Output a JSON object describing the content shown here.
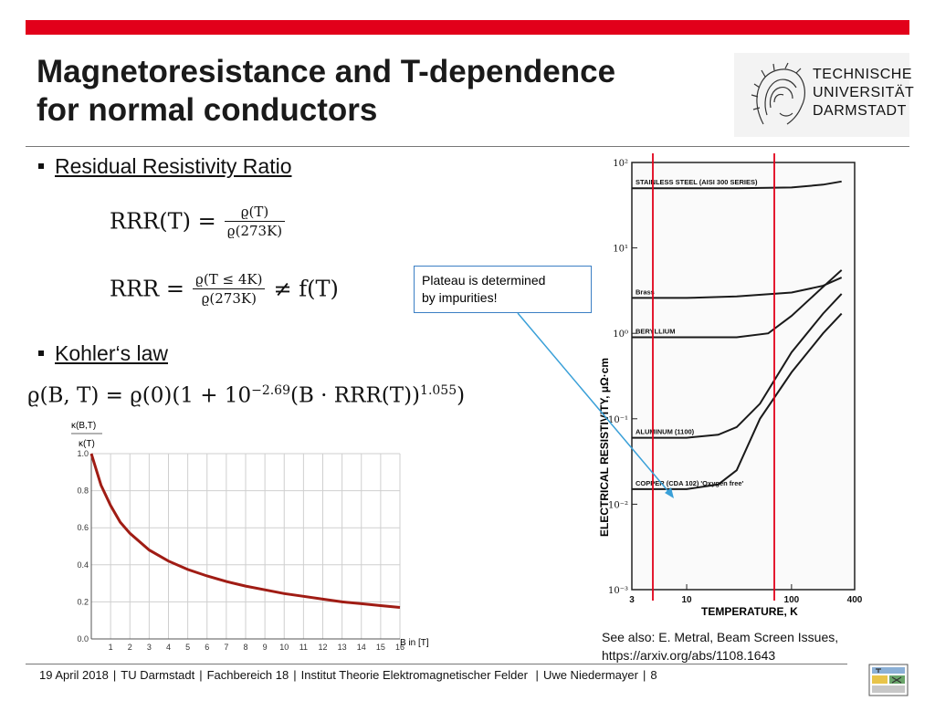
{
  "slide": {
    "title_line1": "Magnetoresistance and T-dependence",
    "title_line2": "for normal conductors",
    "accent_color": "#e2001a",
    "logo": {
      "line1": "TECHNISCHE",
      "line2": "UNIVERSITÄT",
      "line3": "DARMSTADT"
    },
    "bullet1": "Residual Resistivity Ratio",
    "bullet2": "Kohler‘s law",
    "eq1": {
      "lhs": "RRR(T) =",
      "num": "ϱ(T)",
      "den": "ϱ(273K)"
    },
    "eq2": {
      "lhs": "RRR =",
      "num": "ϱ(T ≤ 4K)",
      "den": "ϱ(273K)",
      "rhs": "≠ f(T)"
    },
    "eq3": {
      "text": "ϱ(B, T) = ϱ(0)(1 + 10",
      "exp": "−2.69",
      "mid": "(B · RRR(T))",
      "exp2": "1.055",
      "end": ")"
    },
    "callout": {
      "line1": "Plateau is determined",
      "line2": "by impurities!"
    },
    "seealso": {
      "line1": "See also: E. Metral, Beam Screen Issues,",
      "line2": "https://arxiv.org/abs/1108.1643"
    },
    "footer": {
      "date": "19 April 2018",
      "org": "TU Darmstadt",
      "dept": "Fachbereich 18",
      "inst": "Institut Theorie Elektromagnetischer Felder",
      "author": "Uwe Niedermayer",
      "page": "8"
    }
  },
  "chart_data": [
    {
      "type": "line",
      "ylabel_top": "κ(B,T)",
      "ylabel_bottom": "κ(T)",
      "xlabel": "B in [T]",
      "xlim": [
        0,
        16
      ],
      "ylim": [
        0,
        1
      ],
      "x_ticks": [
        "1",
        "2",
        "3",
        "4",
        "5",
        "6",
        "7",
        "8",
        "9",
        "10",
        "11",
        "12",
        "13",
        "14",
        "15",
        "16"
      ],
      "y_ticks": [
        "0.0",
        "0.2",
        "0.4",
        "0.6",
        "0.8",
        "1.0"
      ],
      "grid": true,
      "series_color": "#a01c14",
      "x": [
        0,
        0.5,
        1,
        1.5,
        2,
        3,
        4,
        5,
        6,
        7,
        8,
        9,
        10,
        11,
        12,
        13,
        14,
        15,
        16
      ],
      "y": [
        1.0,
        0.83,
        0.72,
        0.63,
        0.57,
        0.48,
        0.42,
        0.375,
        0.34,
        0.31,
        0.285,
        0.265,
        0.245,
        0.23,
        0.215,
        0.2,
        0.19,
        0.18,
        0.17
      ]
    },
    {
      "type": "line",
      "ylabel": "ELECTRICAL RESISTIVITY, μΩ·cm",
      "xlabel": "TEMPERATURE, K",
      "x_tick_labels": [
        "3",
        "10",
        "100",
        "400"
      ],
      "y_tick_labels": [
        "10²",
        "10¹",
        "10⁰",
        "10⁻¹",
        "10⁻²",
        "10⁻³"
      ],
      "log_x": true,
      "log_y": true,
      "xlim": [
        3,
        400
      ],
      "ylim": [
        0.001,
        100
      ],
      "marker_lines_color": "#e2001a",
      "series": [
        {
          "name": "STAINLESS STEEL (AISI 300 SERIES)",
          "x": [
            3,
            10,
            30,
            100,
            200,
            300
          ],
          "y": [
            50,
            50,
            50,
            51,
            55,
            60
          ]
        },
        {
          "name": "Brass",
          "x": [
            3,
            10,
            30,
            100,
            200,
            300
          ],
          "y": [
            2.6,
            2.6,
            2.7,
            3.0,
            3.6,
            4.5
          ]
        },
        {
          "name": "BERYLLIUM",
          "x": [
            3,
            10,
            30,
            60,
            100,
            200,
            300
          ],
          "y": [
            0.9,
            0.9,
            0.9,
            1.0,
            1.6,
            3.5,
            5.5
          ]
        },
        {
          "name": "ALUMINUM (1100)",
          "x": [
            3,
            10,
            20,
            30,
            50,
            100,
            200,
            300
          ],
          "y": [
            0.06,
            0.06,
            0.065,
            0.08,
            0.15,
            0.6,
            1.7,
            2.9
          ]
        },
        {
          "name": "COPPER (CDA 102) 'Oxygen free'",
          "x": [
            3,
            10,
            20,
            30,
            50,
            100,
            200,
            300
          ],
          "y": [
            0.015,
            0.015,
            0.017,
            0.025,
            0.1,
            0.35,
            1.0,
            1.7
          ]
        }
      ]
    }
  ]
}
